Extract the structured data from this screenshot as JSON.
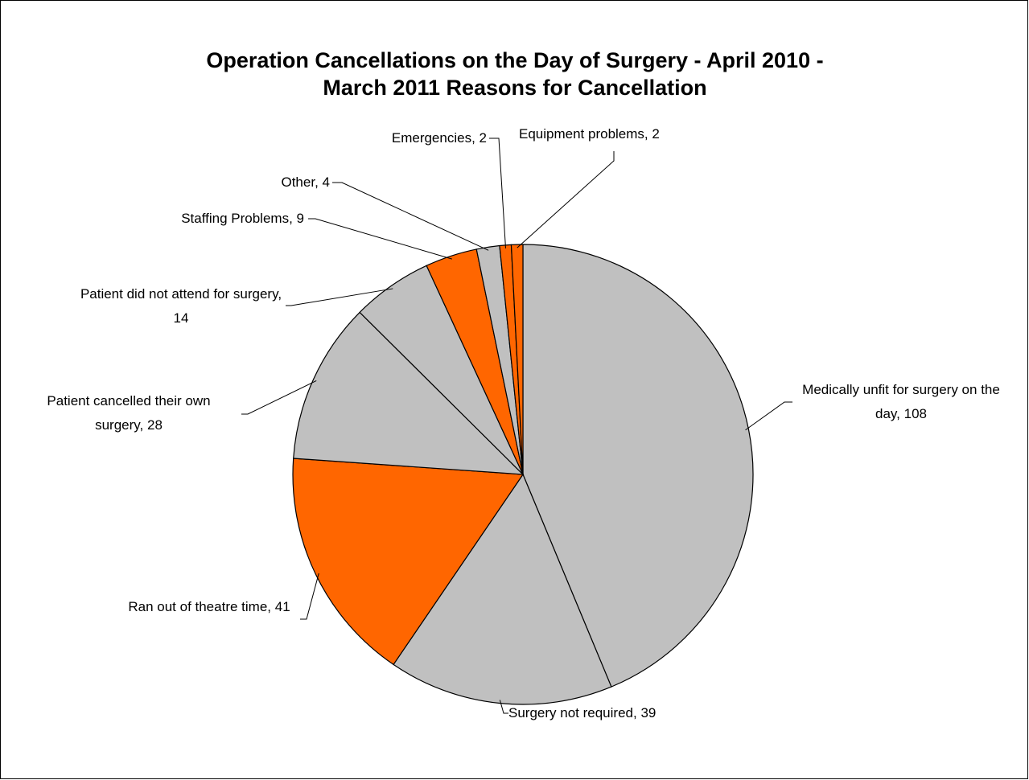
{
  "chart_data": {
    "type": "pie",
    "title": "Operation Cancellations on the Day of Surgery - April 2010 - March 2011 Reasons for Cancellation",
    "categories": [
      "Medically unfit for surgery on the day,",
      "Surgery not required,",
      "Ran out of theatre time,",
      "Patient cancelled their own surgery,",
      "Patient did not attend for surgery,",
      "Staffing Problems,",
      "Other,",
      "Emergencies,",
      "Equipment problems,"
    ],
    "values": [
      108,
      39,
      41,
      28,
      14,
      9,
      4,
      2,
      2
    ],
    "colors": [
      "#c0c0c0",
      "#c0c0c0",
      "#ff6600",
      "#c0c0c0",
      "#c0c0c0",
      "#ff6600",
      "#c0c0c0",
      "#ff6600",
      "#ff6600"
    ]
  }
}
